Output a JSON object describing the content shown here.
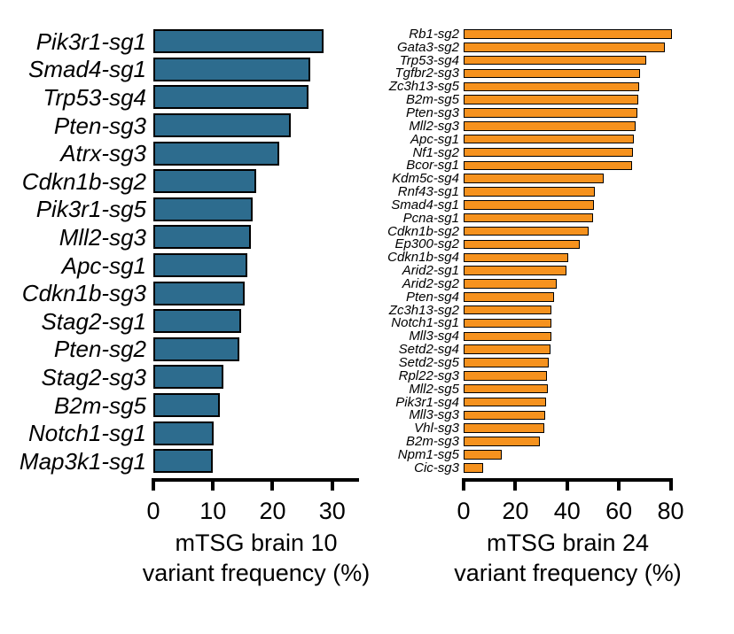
{
  "figure": {
    "background": "#ffffff",
    "text_color": "#000000"
  },
  "chart_data": [
    {
      "id": "left",
      "type": "bar",
      "orientation": "horizontal",
      "xlabel_line1": "mTSG brain 10",
      "xlabel_line2": "variant frequency (%)",
      "bar_color": "#2D6C8E",
      "bar_outline": "#000000",
      "grid": false,
      "axis": {
        "min": 0,
        "max": 34.5,
        "ticks": [
          0,
          10,
          20,
          30
        ],
        "unit": "%"
      },
      "bars": [
        {
          "label": "Pik3r1-sg1",
          "value": 28
        },
        {
          "label": "Smad4-sg1",
          "value": 25.8
        },
        {
          "label": "Trp53-sg4",
          "value": 25.5
        },
        {
          "label": "Pten-sg3",
          "value": 22.5
        },
        {
          "label": "Atrx-sg3",
          "value": 20.5
        },
        {
          "label": "Cdkn1b-sg2",
          "value": 16.6
        },
        {
          "label": "Pik3r1-sg5",
          "value": 16.1
        },
        {
          "label": "Mll2-sg3",
          "value": 15.8
        },
        {
          "label": "Apc-sg1",
          "value": 15.1
        },
        {
          "label": "Cdkn1b-sg3",
          "value": 14.7
        },
        {
          "label": "Stag2-sg1",
          "value": 14.2
        },
        {
          "label": "Pten-sg2",
          "value": 13.8
        },
        {
          "label": "Stag2-sg3",
          "value": 11.1
        },
        {
          "label": "B2m-sg5",
          "value": 10.5
        },
        {
          "label": "Notch1-sg1",
          "value": 9.5
        },
        {
          "label": "Map3k1-sg1",
          "value": 9.3
        }
      ]
    },
    {
      "id": "right",
      "type": "bar",
      "orientation": "horizontal",
      "xlabel_line1": "mTSG brain 24",
      "xlabel_line2": "variant frequency (%)",
      "bar_color": "#F6921E",
      "bar_outline": "#000000",
      "grid": false,
      "axis": {
        "min": 0,
        "max": 80.5,
        "ticks": [
          0,
          20,
          40,
          60,
          80
        ],
        "unit": "%"
      },
      "bars": [
        {
          "label": "Rb1-sg2",
          "value": 80
        },
        {
          "label": "Gata3-sg2",
          "value": 77
        },
        {
          "label": "Trp53-sg4",
          "value": 70
        },
        {
          "label": "Tgfbr2-sg3",
          "value": 67.5
        },
        {
          "label": "Zc3h13-sg5",
          "value": 67.3
        },
        {
          "label": "B2m-sg5",
          "value": 66.7
        },
        {
          "label": "Pten-sg3",
          "value": 66.5
        },
        {
          "label": "Mll2-sg3",
          "value": 65.6
        },
        {
          "label": "Apc-sg1",
          "value": 65
        },
        {
          "label": "Nf1-sg2",
          "value": 64.6
        },
        {
          "label": "Bcor-sg1",
          "value": 64.3
        },
        {
          "label": "Kdm5c-sg4",
          "value": 53.3
        },
        {
          "label": "Rnf43-sg1",
          "value": 49.9
        },
        {
          "label": "Smad4-sg1",
          "value": 49.6
        },
        {
          "label": "Pcna-sg1",
          "value": 49.2
        },
        {
          "label": "Cdkn1b-sg2",
          "value": 47.5
        },
        {
          "label": "Ep300-sg2",
          "value": 44.1
        },
        {
          "label": "Cdkn1b-sg4",
          "value": 39.7
        },
        {
          "label": "Arid2-sg1",
          "value": 39
        },
        {
          "label": "Arid2-sg2",
          "value": 35.2
        },
        {
          "label": "Pten-sg4",
          "value": 34.2
        },
        {
          "label": "Zc3h13-sg2",
          "value": 33.2
        },
        {
          "label": "Notch1-sg1",
          "value": 33.2
        },
        {
          "label": "Mll3-sg4",
          "value": 33.2
        },
        {
          "label": "Setd2-sg4",
          "value": 32.8
        },
        {
          "label": "Setd2-sg5",
          "value": 32.1
        },
        {
          "label": "Rpl22-sg3",
          "value": 31.5
        },
        {
          "label": "Mll2-sg5",
          "value": 31.8
        },
        {
          "label": "Pik3r1-sg4",
          "value": 31.1
        },
        {
          "label": "Mll3-sg3",
          "value": 30.8
        },
        {
          "label": "Vhl-sg3",
          "value": 30.6
        },
        {
          "label": "B2m-sg3",
          "value": 28.7
        },
        {
          "label": "Npm1-sg5",
          "value": 14
        },
        {
          "label": "Cic-sg3",
          "value": 6.7
        }
      ]
    }
  ]
}
